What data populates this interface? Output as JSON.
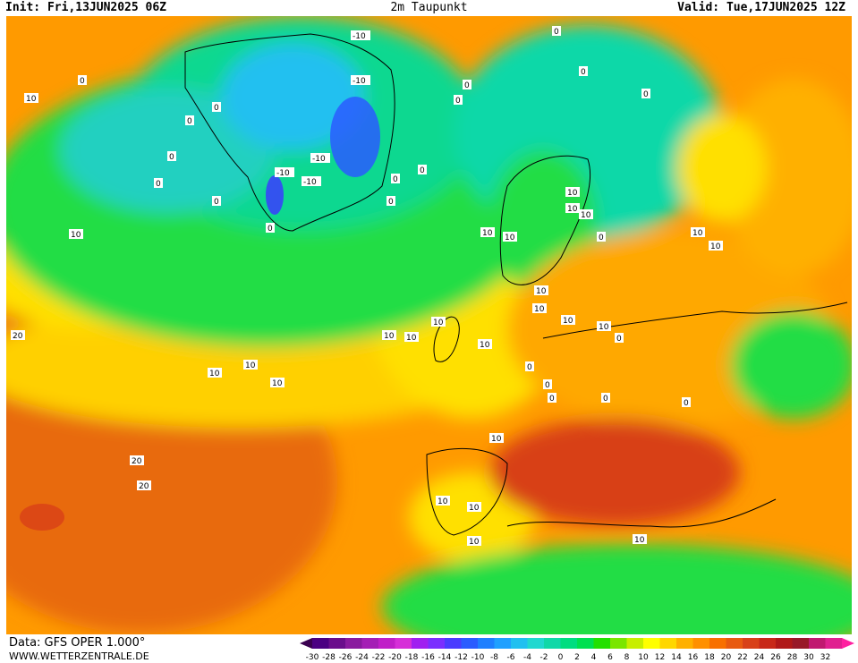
{
  "header": {
    "init": "Init: Fri,13JUN2025 06Z",
    "title": "2m Taupunkt",
    "valid": "Valid: Tue,17JUN2025 12Z"
  },
  "footer": {
    "source": "Data: GFS OPER 1.000°",
    "url": "WWW.WETTERZENTRALE.DE"
  },
  "colorbar": {
    "ticks": [
      "-30",
      "-28",
      "-26",
      "-24",
      "-22",
      "-20",
      "-18",
      "-16",
      "-14",
      "-12",
      "-10",
      "-8",
      "-6",
      "-4",
      "-2",
      "0",
      "2",
      "4",
      "6",
      "8",
      "10",
      "12",
      "14",
      "16",
      "18",
      "20",
      "22",
      "24",
      "26",
      "28",
      "30",
      "32"
    ],
    "colors": [
      "#4b0082",
      "#6a0d8c",
      "#8a1a9f",
      "#a41fb5",
      "#c01fc8",
      "#d62fd8",
      "#a020f0",
      "#7a2fff",
      "#4a3cff",
      "#2a5cff",
      "#1f7fff",
      "#20a0ff",
      "#20c0f0",
      "#20d8d0",
      "#10d8a8",
      "#00dd80",
      "#00e050",
      "#22e000",
      "#7ae600",
      "#c8ee00",
      "#ffff00",
      "#ffd700",
      "#ffb000",
      "#ff9000",
      "#f87000",
      "#e85a10",
      "#d84018",
      "#c82818",
      "#b01818",
      "#981828",
      "#c01870",
      "#e02090"
    ],
    "start_color": "#3a0050",
    "end_color": "#ff20a0"
  },
  "map_labels": [
    {
      "t": "10"
    },
    {
      "t": "10"
    },
    {
      "t": "10"
    },
    {
      "t": "20"
    },
    {
      "t": "20"
    },
    {
      "t": "20"
    },
    {
      "t": "0"
    },
    {
      "t": "0"
    },
    {
      "t": "0"
    },
    {
      "t": "0"
    },
    {
      "t": "0"
    },
    {
      "t": "0"
    },
    {
      "t": "-10"
    },
    {
      "t": "-10"
    },
    {
      "t": "-10"
    },
    {
      "t": "-10"
    },
    {
      "t": "-10"
    },
    {
      "t": "0"
    },
    {
      "t": "0"
    },
    {
      "t": "0"
    },
    {
      "t": "0"
    },
    {
      "t": "0"
    },
    {
      "t": "10"
    },
    {
      "t": "10"
    },
    {
      "t": "10"
    },
    {
      "t": "10"
    },
    {
      "t": "10"
    },
    {
      "t": "10"
    },
    {
      "t": "10"
    },
    {
      "t": "10"
    },
    {
      "t": "10"
    },
    {
      "t": "10"
    },
    {
      "t": "10"
    },
    {
      "t": "10"
    },
    {
      "t": "10"
    },
    {
      "t": "10"
    },
    {
      "t": "10"
    },
    {
      "t": "10"
    },
    {
      "t": "0"
    },
    {
      "t": "0"
    },
    {
      "t": "0"
    },
    {
      "t": "0"
    },
    {
      "t": "0"
    },
    {
      "t": "0"
    },
    {
      "t": "10"
    },
    {
      "t": "10"
    },
    {
      "t": "10"
    },
    {
      "t": "10"
    },
    {
      "t": "10"
    },
    {
      "t": "10"
    },
    {
      "t": "0"
    },
    {
      "t": "0"
    },
    {
      "t": "0"
    },
    {
      "t": "0"
    },
    {
      "t": "0"
    }
  ]
}
